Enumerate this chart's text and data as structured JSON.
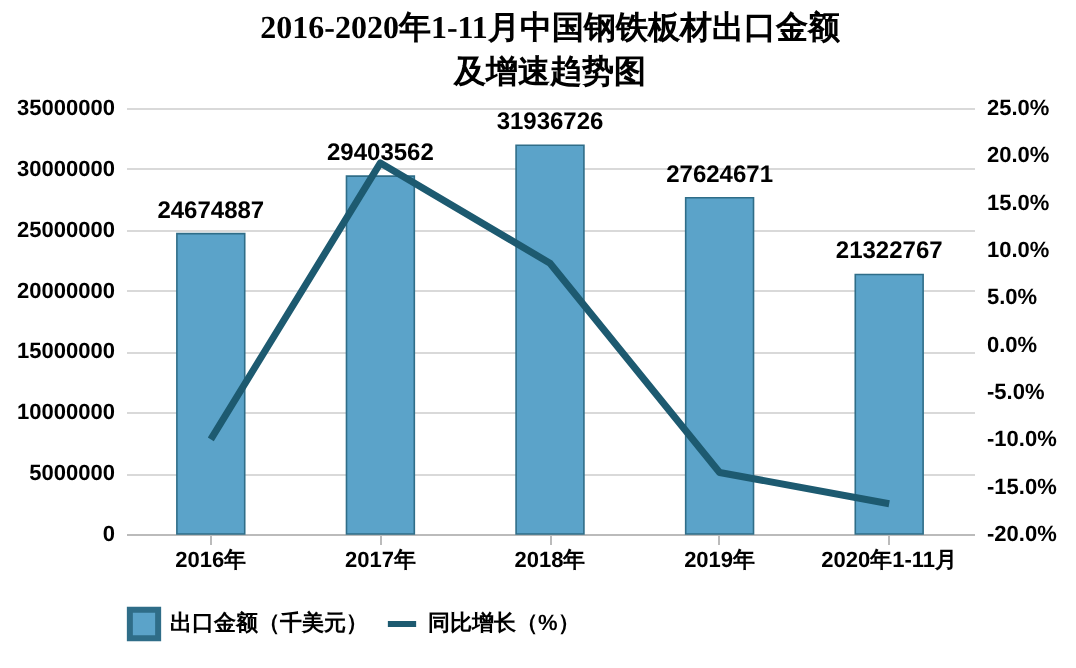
{
  "chart_data": {
    "type": "bar",
    "title": "2016-2020年1-11月中国钢铁板材出口金额及增速趋势图",
    "categories": [
      "2016年",
      "2017年",
      "2018年",
      "2019年",
      "2020年1-11月"
    ],
    "series": [
      {
        "name": "出口金额（千美元）",
        "color": "#5ba3c9",
        "values": [
          24674887,
          29403562,
          31936726,
          27624671,
          21322767
        ],
        "value_labels": [
          "24674887",
          "29403562",
          "31936726",
          "27624671",
          "21322767"
        ]
      },
      {
        "name": "同比增长（%）",
        "type": "line",
        "axis": "y2",
        "color": "#1d5a70",
        "values": [
          -10.0,
          19.2,
          8.6,
          -13.5,
          -16.8
        ]
      }
    ],
    "ylim": [
      0,
      35000000
    ],
    "yticks": [
      0,
      5000000,
      10000000,
      15000000,
      20000000,
      25000000,
      30000000,
      35000000
    ],
    "y2lim": [
      -20,
      25
    ],
    "y2ticks": [
      {
        "value": -20,
        "label": "-20.0%"
      },
      {
        "value": -15,
        "label": "-15.0%"
      },
      {
        "value": -10,
        "label": "-10.0%"
      },
      {
        "value": -5,
        "label": "-5.0%"
      },
      {
        "value": 0,
        "label": "0.0%"
      },
      {
        "value": 5,
        "label": "5.0%"
      },
      {
        "value": 10,
        "label": "10.0%"
      },
      {
        "value": 15,
        "label": "15.0%"
      },
      {
        "value": 20,
        "label": "20.0%"
      },
      {
        "value": 25,
        "label": "25.0%"
      }
    ],
    "grid": "y",
    "legend": "bottom",
    "marker": "none",
    "line_style": "solid"
  }
}
